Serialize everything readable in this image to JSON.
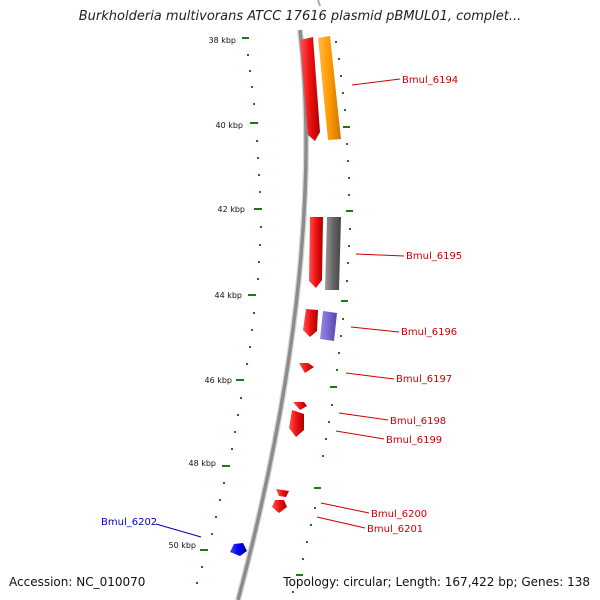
{
  "title": "Burkholderia multivorans ATCC 17616 plasmid pBMUL01, complet...",
  "footer": {
    "accession": "Accession: NC_010070",
    "stats": "Topology: circular; Length: 167,422 bp; Genes: 138"
  },
  "colors": {
    "backbone": "#8c8c8c",
    "tick": "#1a7a1a",
    "cds": "#ee1111",
    "label_red": "#cc0000",
    "label_blue": "#0000bb",
    "orange": "#ff9900",
    "gray": "#666666",
    "purple": "#7766cc",
    "blue": "#0000ee"
  },
  "scale_labels": [
    "38 kbp",
    "40 kbp",
    "42 kbp",
    "44 kbp",
    "46 kbp",
    "48 kbp",
    "50 kbp"
  ],
  "genes": [
    {
      "label": "Bmul_6194",
      "color": "label_red"
    },
    {
      "label": "Bmul_6195",
      "color": "label_red"
    },
    {
      "label": "Bmul_6196",
      "color": "label_red"
    },
    {
      "label": "Bmul_6197",
      "color": "label_red"
    },
    {
      "label": "Bmul_6198",
      "color": "label_red"
    },
    {
      "label": "Bmul_6199",
      "color": "label_red"
    },
    {
      "label": "Bmul_6200",
      "color": "label_red"
    },
    {
      "label": "Bmul_6201",
      "color": "label_red"
    },
    {
      "label": "Bmul_6202",
      "color": "label_blue"
    }
  ]
}
